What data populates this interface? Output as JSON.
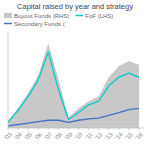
{
  "chart_data": {
    "type": "line",
    "title": "Capital raised by year and strategy",
    "x": [
      2003,
      2004,
      2005,
      2006,
      2007,
      2008,
      2009,
      2010,
      2011,
      2012,
      2013,
      2014,
      2015,
      2016
    ],
    "series": [
      {
        "name": "Buyout Funds (RHS)",
        "type": "area",
        "color": "#c8c8c8",
        "values": [
          10,
          28,
          50,
          75,
          120,
          70,
          15,
          28,
          38,
          45,
          72,
          88,
          95,
          90
        ]
      },
      {
        "name": "FoF (LHS)",
        "type": "line",
        "color": "#00cccc",
        "values": [
          8,
          25,
          45,
          68,
          108,
          55,
          12,
          22,
          33,
          38,
          60,
          72,
          78,
          72
        ]
      },
      {
        "name": "Secondary Funds (",
        "type": "line",
        "color": "#4472c4",
        "values": [
          3,
          5,
          7,
          9,
          11,
          11,
          8,
          11,
          13,
          14,
          18,
          22,
          26,
          28
        ]
      }
    ],
    "xlim": [
      2003,
      2016.5
    ],
    "xticks": [
      {
        "value": 2003,
        "label": "'03"
      },
      {
        "value": 2004,
        "label": "'04"
      },
      {
        "value": 2005,
        "label": "'05"
      },
      {
        "value": 2006,
        "label": "'06"
      },
      {
        "value": 2007,
        "label": "'07"
      },
      {
        "value": 2008,
        "label": "'08"
      },
      {
        "value": 2009,
        "label": "'09"
      },
      {
        "value": 2010,
        "label": "'10"
      },
      {
        "value": 2011,
        "label": "'11"
      },
      {
        "value": 2012,
        "label": "'12"
      },
      {
        "value": 2013,
        "label": "'13"
      },
      {
        "value": 2014,
        "label": "'14"
      },
      {
        "value": 2015,
        "label": "'15"
      },
      {
        "value": 2016,
        "label": "'16"
      }
    ],
    "ylim": [
      0,
      135
    ],
    "yticks": [],
    "tick_labels": "x",
    "grid": false,
    "legend": "top"
  }
}
